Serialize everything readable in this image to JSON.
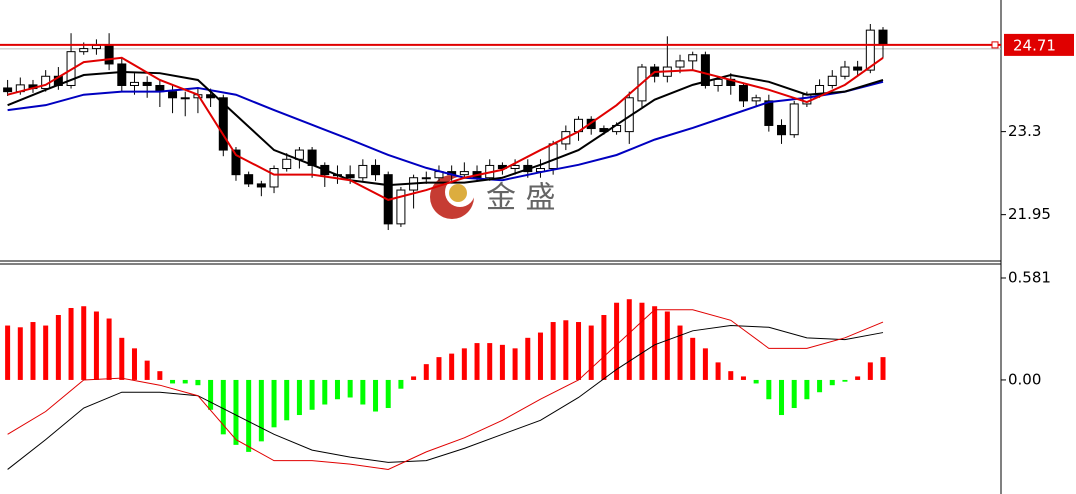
{
  "chart_data": [
    {
      "type": "candlestick",
      "xlim": [
        -0.6,
        78.3
      ],
      "ylim": [
        21.18,
        25.44
      ],
      "yticks": [
        21.95,
        23.3
      ],
      "open": [
        24.01,
        23.95,
        24.06,
        24.0,
        24.2,
        24.05,
        24.6,
        24.65,
        24.7,
        24.4,
        24.05,
        24.1,
        24.05,
        23.95,
        23.85,
        23.85,
        23.9,
        23.85,
        23.0,
        22.6,
        22.45,
        22.4,
        22.7,
        22.85,
        23.0,
        22.75,
        22.6,
        22.6,
        22.55,
        22.75,
        22.6,
        21.8,
        22.35,
        22.55,
        22.55,
        22.65,
        22.6,
        22.65,
        22.55,
        22.75,
        22.7,
        22.75,
        22.65,
        22.7,
        23.1,
        23.3,
        23.5,
        23.35,
        23.3,
        23.3,
        23.8,
        24.35,
        24.2,
        24.35,
        24.45,
        24.55,
        24.05,
        24.15,
        24.05,
        23.8,
        23.8,
        23.4,
        23.25,
        23.75,
        23.9,
        24.05,
        24.2,
        24.35,
        24.3,
        24.95
      ],
      "high": [
        24.14,
        24.18,
        24.14,
        24.3,
        24.35,
        24.9,
        24.75,
        24.8,
        24.9,
        24.5,
        24.25,
        24.2,
        24.15,
        24.05,
        23.95,
        24.0,
        24.0,
        23.9,
        23.05,
        22.65,
        22.5,
        22.75,
        22.95,
        23.05,
        23.05,
        22.8,
        22.75,
        22.75,
        22.85,
        22.85,
        22.65,
        22.4,
        22.6,
        22.65,
        22.75,
        22.75,
        22.8,
        22.75,
        22.85,
        22.8,
        22.85,
        22.85,
        22.85,
        23.15,
        23.4,
        23.55,
        23.55,
        23.4,
        23.45,
        23.95,
        24.4,
        24.4,
        24.85,
        24.55,
        24.6,
        24.6,
        24.2,
        24.25,
        24.1,
        23.9,
        23.9,
        23.5,
        23.8,
        23.95,
        24.15,
        24.3,
        24.45,
        24.45,
        25.05,
        25.0
      ],
      "low": [
        23.88,
        23.9,
        23.93,
        23.95,
        23.98,
        24.0,
        24.55,
        24.55,
        24.3,
        23.95,
        23.9,
        23.85,
        23.7,
        23.6,
        23.55,
        23.6,
        23.7,
        22.9,
        22.5,
        22.4,
        22.25,
        22.3,
        22.65,
        22.7,
        22.55,
        22.4,
        22.45,
        22.45,
        22.5,
        22.5,
        21.7,
        21.75,
        22.05,
        22.45,
        22.5,
        22.5,
        22.55,
        22.5,
        22.5,
        22.6,
        22.6,
        22.55,
        22.55,
        22.6,
        23.0,
        23.15,
        23.25,
        23.25,
        23.25,
        23.1,
        23.7,
        24.1,
        24.1,
        24.25,
        24.3,
        24.0,
        23.95,
        23.9,
        23.7,
        23.7,
        23.3,
        23.1,
        23.2,
        23.7,
        23.85,
        24.0,
        24.15,
        24.2,
        24.25,
        24.5
      ],
      "close": [
        23.95,
        24.06,
        24.0,
        24.2,
        24.05,
        24.6,
        24.65,
        24.7,
        24.4,
        24.05,
        24.1,
        24.05,
        23.95,
        23.85,
        23.85,
        23.9,
        23.85,
        23.0,
        22.6,
        22.45,
        22.4,
        22.7,
        22.85,
        23.0,
        22.75,
        22.6,
        22.6,
        22.55,
        22.75,
        22.6,
        21.8,
        22.35,
        22.55,
        22.55,
        22.65,
        22.6,
        22.65,
        22.55,
        22.75,
        22.7,
        22.75,
        22.65,
        22.7,
        23.1,
        23.3,
        23.5,
        23.35,
        23.3,
        23.4,
        23.85,
        24.35,
        24.2,
        24.35,
        24.45,
        24.55,
        24.05,
        24.15,
        24.05,
        23.8,
        23.85,
        23.4,
        23.25,
        23.75,
        23.9,
        24.05,
        24.2,
        24.35,
        24.3,
        24.95,
        24.71
      ],
      "line_x": [
        0,
        3,
        6,
        9,
        12,
        15,
        18,
        21,
        24,
        27,
        30,
        33,
        36,
        39,
        42,
        45,
        48,
        51,
        54,
        57,
        60,
        63,
        66,
        69
      ],
      "lines": [
        {
          "color": "#0000c0",
          "values": [
            23.65,
            23.73,
            23.9,
            23.95,
            23.95,
            24.01,
            23.9,
            23.65,
            23.41,
            23.17,
            22.92,
            22.71,
            22.55,
            22.51,
            22.64,
            22.76,
            22.92,
            23.17,
            23.36,
            23.57,
            23.78,
            23.85,
            23.95,
            24.11
          ]
        },
        {
          "color": "#000000",
          "values": [
            23.73,
            23.98,
            24.22,
            24.27,
            24.25,
            24.14,
            23.57,
            23.0,
            22.76,
            22.51,
            22.43,
            22.47,
            22.47,
            22.55,
            22.76,
            23.0,
            23.41,
            23.82,
            24.06,
            24.22,
            24.11,
            23.9,
            23.95,
            24.14
          ]
        },
        {
          "color": "#e00000",
          "values": [
            23.9,
            24.06,
            24.43,
            24.5,
            24.14,
            23.9,
            22.92,
            22.6,
            22.6,
            22.51,
            22.19,
            22.35,
            22.55,
            22.68,
            23.0,
            23.3,
            23.73,
            24.27,
            24.3,
            24.14,
            23.98,
            23.78,
            24.06,
            24.5
          ]
        }
      ],
      "last_price": {
        "value": 24.71,
        "color": "#e00000"
      }
    },
    {
      "type": "macd",
      "xlim": [
        -0.6,
        78.3
      ],
      "ylim": [
        -0.65,
        0.655
      ],
      "yticks": [
        0.581,
        {
          "value": 0,
          "label": "0.00"
        }
      ],
      "pos_color": "#ff0000",
      "neg_color": "#00ff00",
      "histogram": [
        0.31,
        0.3,
        0.33,
        0.31,
        0.37,
        0.41,
        0.42,
        0.39,
        0.35,
        0.24,
        0.18,
        0.11,
        0.05,
        -0.02,
        -0.02,
        -0.03,
        -0.17,
        -0.31,
        -0.37,
        -0.41,
        -0.35,
        -0.27,
        -0.23,
        -0.2,
        -0.17,
        -0.14,
        -0.11,
        -0.1,
        -0.14,
        -0.18,
        -0.16,
        -0.05,
        0.02,
        0.09,
        0.13,
        0.15,
        0.18,
        0.21,
        0.21,
        0.2,
        0.18,
        0.24,
        0.27,
        0.33,
        0.34,
        0.33,
        0.31,
        0.37,
        0.44,
        0.46,
        0.44,
        0.42,
        0.39,
        0.31,
        0.24,
        0.18,
        0.1,
        0.05,
        0.02,
        -0.02,
        -0.11,
        -0.2,
        -0.16,
        -0.11,
        -0.07,
        -0.03,
        -0.01,
        0.02,
        0.1,
        0.13
      ],
      "line_x": [
        0,
        3,
        6,
        9,
        12,
        15,
        18,
        21,
        24,
        27,
        30,
        33,
        36,
        39,
        42,
        45,
        48,
        51,
        54,
        57,
        60,
        63,
        66,
        69
      ],
      "lines": [
        {
          "color": "#000000",
          "values": [
            -0.51,
            -0.34,
            -0.16,
            -0.07,
            -0.07,
            -0.09,
            -0.2,
            -0.31,
            -0.4,
            -0.44,
            -0.47,
            -0.46,
            -0.39,
            -0.31,
            -0.23,
            -0.1,
            0.06,
            0.2,
            0.28,
            0.31,
            0.3,
            0.24,
            0.23,
            0.27
          ]
        },
        {
          "color": "#e00000",
          "values": [
            -0.31,
            -0.18,
            0,
            0.01,
            -0.03,
            -0.09,
            -0.34,
            -0.46,
            -0.46,
            -0.48,
            -0.51,
            -0.41,
            -0.33,
            -0.23,
            -0.11,
            0,
            0.2,
            0.4,
            0.4,
            0.34,
            0.18,
            0.18,
            0.24,
            0.33
          ]
        }
      ]
    }
  ],
  "watermark": {
    "text": "金 盛"
  }
}
